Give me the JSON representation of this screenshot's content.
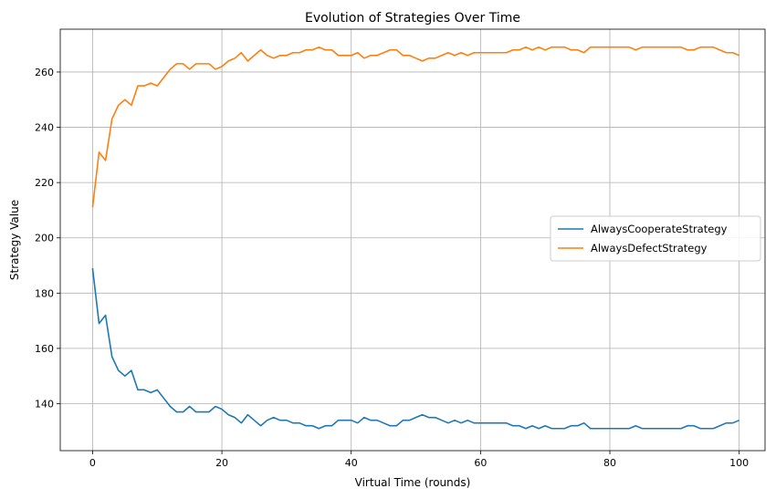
{
  "chart_data": {
    "type": "line",
    "title": "Evolution of Strategies Over Time",
    "xlabel": "Virtual Time (rounds)",
    "ylabel": "Strategy Value",
    "xlim": [
      -5,
      104
    ],
    "ylim": [
      123,
      275.5
    ],
    "xticks": [
      0,
      20,
      40,
      60,
      80,
      100
    ],
    "yticks": [
      140,
      160,
      180,
      200,
      220,
      240,
      260
    ],
    "grid": true,
    "legend_position": "center-right",
    "series": [
      {
        "name": "AlwaysCooperateStrategy",
        "color": "#1f77b4",
        "values": [
          189,
          169,
          172,
          157,
          152,
          150,
          152,
          145,
          145,
          144,
          145,
          142,
          139,
          137,
          137,
          139,
          137,
          137,
          137,
          139,
          138,
          136,
          135,
          133,
          136,
          134,
          132,
          134,
          135,
          134,
          134,
          133,
          133,
          132,
          132,
          131,
          132,
          132,
          134,
          134,
          134,
          133,
          135,
          134,
          134,
          133,
          132,
          132,
          134,
          134,
          135,
          136,
          135,
          135,
          134,
          133,
          134,
          133,
          134,
          133,
          133,
          133,
          133,
          133,
          133,
          132,
          132,
          131,
          132,
          131,
          132,
          131,
          131,
          131,
          132,
          132,
          133,
          131,
          131,
          131,
          131,
          131,
          131,
          131,
          132,
          131,
          131,
          131,
          131,
          131,
          131,
          131,
          132,
          132,
          131,
          131,
          131,
          132,
          133,
          133,
          134
        ]
      },
      {
        "name": "AlwaysDefectStrategy",
        "color": "#ff7f0e",
        "values": [
          211,
          231,
          228,
          243,
          248,
          250,
          248,
          255,
          255,
          256,
          255,
          258,
          261,
          263,
          263,
          261,
          263,
          263,
          263,
          261,
          262,
          264,
          265,
          267,
          264,
          266,
          268,
          266,
          265,
          266,
          266,
          267,
          267,
          268,
          268,
          269,
          268,
          268,
          266,
          266,
          266,
          267,
          265,
          266,
          266,
          267,
          268,
          268,
          266,
          266,
          265,
          264,
          265,
          265,
          266,
          267,
          266,
          267,
          266,
          267,
          267,
          267,
          267,
          267,
          267,
          268,
          268,
          269,
          268,
          269,
          268,
          269,
          269,
          269,
          268,
          268,
          267,
          269,
          269,
          269,
          269,
          269,
          269,
          269,
          268,
          269,
          269,
          269,
          269,
          269,
          269,
          269,
          268,
          268,
          269,
          269,
          269,
          268,
          267,
          267,
          266
        ]
      }
    ]
  }
}
